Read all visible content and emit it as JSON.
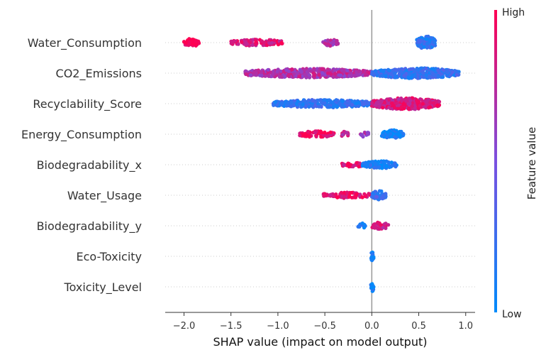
{
  "chart_data": {
    "type": "scatter",
    "subtype": "shap-beeswarm",
    "xlabel": "SHAP value (impact on model output)",
    "x_ticks": [
      -2.0,
      -1.5,
      -1.0,
      -0.5,
      0.0,
      0.5,
      1.0
    ],
    "x_tick_labels": [
      "−2.0",
      "−1.5",
      "−1.0",
      "−0.5",
      "0.0",
      "0.5",
      "1.0"
    ],
    "xlim": [
      -2.2,
      1.1
    ],
    "zero_line": true,
    "colorbar": {
      "title": "Feature value",
      "high_label": "High",
      "low_label": "Low",
      "low_color": "#008bfb",
      "high_color": "#ff0052"
    },
    "features": [
      {
        "name": "Water_Consumption",
        "segments": [
          {
            "x0": -2.0,
            "x1": -1.84,
            "value": 0.98,
            "density": 1.0
          },
          {
            "x0": -1.5,
            "x1": -0.95,
            "value": 0.88,
            "density": 0.7
          },
          {
            "x0": -0.52,
            "x1": -0.36,
            "value": 0.65,
            "density": 0.7
          },
          {
            "x0": 0.48,
            "x1": 0.68,
            "value": 0.2,
            "density": 2.3
          }
        ]
      },
      {
        "name": "CO2_Emissions",
        "segments": [
          {
            "x0": -1.35,
            "x1": 0.0,
            "value": 0.7,
            "density": 1.2
          },
          {
            "x0": 0.0,
            "x1": 0.93,
            "value": 0.2,
            "density": 1.5
          }
        ]
      },
      {
        "name": "Recyclability_Score",
        "segments": [
          {
            "x0": -1.05,
            "x1": 0.0,
            "value": 0.2,
            "density": 1.0
          },
          {
            "x0": 0.0,
            "x1": 0.72,
            "value": 0.85,
            "density": 1.8
          }
        ]
      },
      {
        "name": "Energy_Consumption",
        "segments": [
          {
            "x0": -0.77,
            "x1": -0.4,
            "value": 0.95,
            "density": 0.6
          },
          {
            "x0": -0.33,
            "x1": -0.25,
            "value": 0.8,
            "density": 0.4
          },
          {
            "x0": -0.14,
            "x1": -0.03,
            "value": 0.65,
            "density": 0.4
          },
          {
            "x0": 0.1,
            "x1": 0.34,
            "value": 0.05,
            "density": 1.1
          }
        ]
      },
      {
        "name": "Biodegradability_x",
        "segments": [
          {
            "x0": -0.33,
            "x1": -0.1,
            "value": 0.9,
            "density": 0.4
          },
          {
            "x0": -0.1,
            "x1": 0.27,
            "value": 0.1,
            "density": 0.9
          }
        ]
      },
      {
        "name": "Water_Usage",
        "segments": [
          {
            "x0": -0.52,
            "x1": 0.0,
            "value": 0.9,
            "density": 0.55
          },
          {
            "x0": 0.0,
            "x1": 0.15,
            "value": 0.25,
            "density": 1.2
          }
        ]
      },
      {
        "name": "Biodegradability_y",
        "segments": [
          {
            "x0": -0.15,
            "x1": -0.06,
            "value": 0.1,
            "density": 0.35
          },
          {
            "x0": 0.0,
            "x1": 0.18,
            "value": 0.85,
            "density": 0.8
          }
        ]
      },
      {
        "name": "Eco-Toxicity",
        "segments": [
          {
            "x0": -0.01,
            "x1": 0.02,
            "value": 0.05,
            "density": 1.2
          }
        ]
      },
      {
        "name": "Toxicity_Level",
        "segments": [
          {
            "x0": -0.01,
            "x1": 0.02,
            "value": 0.05,
            "density": 1.2
          }
        ]
      }
    ]
  }
}
